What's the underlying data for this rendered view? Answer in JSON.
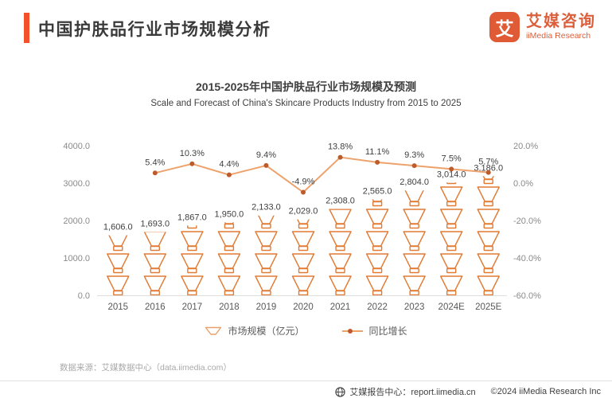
{
  "header": {
    "title": "中国护肤品行业市场规模分析"
  },
  "logo": {
    "icon_char": "艾",
    "name_cn": "艾媒咨询",
    "name_en": "iiMedia Research"
  },
  "chart": {
    "title_cn": "2015-2025年中国护肤品行业市场规模及预测",
    "title_en": "Scale and Forecast of China's Skincare Products Industry from 2015 to 2025"
  },
  "chart_data": {
    "type": "bar",
    "title": "2015-2025年中国护肤品行业市场规模及预测",
    "categories": [
      "2015",
      "2016",
      "2017",
      "2018",
      "2019",
      "2020",
      "2021",
      "2022",
      "2023",
      "2024E",
      "2025E"
    ],
    "series": [
      {
        "name": "市场规模（亿元）",
        "type": "pictorial-bar",
        "values": [
          1606.0,
          1693.0,
          1867.0,
          1950.0,
          2133.0,
          2029.0,
          2308.0,
          2565.0,
          2804.0,
          3014.0,
          3186.0
        ],
        "labels": [
          "1,606.0",
          "1,693.0",
          "1,867.0",
          "1,950.0",
          "2,133.0",
          "2,029.0",
          "2,308.0",
          "2,565.0",
          "2,804.0",
          "3,014.0",
          "3,186.0"
        ],
        "axis": "left"
      },
      {
        "name": "同比增长",
        "type": "line",
        "start_index": 1,
        "values": [
          5.4,
          10.3,
          4.4,
          9.4,
          -4.9,
          13.8,
          11.1,
          9.3,
          7.5,
          5.7
        ],
        "labels": [
          "5.4%",
          "10.3%",
          "4.4%",
          "9.4%",
          "-4.9%",
          "13.8%",
          "11.1%",
          "9.3%",
          "7.5%",
          "5.7%"
        ],
        "axis": "right"
      }
    ],
    "y_left": {
      "min": 0,
      "max": 4000,
      "ticks": [
        "4000.0",
        "3000.0",
        "2000.0",
        "1000.0",
        "0.0"
      ]
    },
    "y_right": {
      "min": -60,
      "max": 20,
      "ticks": [
        "20.0%",
        "0.0%",
        "-20.0%",
        "-40.0%",
        "-60.0%"
      ]
    },
    "grid": false,
    "legend_position": "bottom"
  },
  "source": {
    "text": "数据来源：艾媒数据中心（data.iimedia.com）"
  },
  "footer": {
    "report_center": "艾媒报告中心：report.iimedia.cn",
    "copyright": "©2024  iiMedia Research  Inc"
  },
  "colors": {
    "accent": "#F2512B",
    "logo": "#DC5F3C",
    "bar_stroke": "#E17A33",
    "line": "#EDA26C",
    "marker": "#BE5B2A",
    "value_label": "#404040",
    "axis_tick": "#8A8A8A",
    "x_label": "#595959",
    "axis_line": "#DEDEDE"
  }
}
